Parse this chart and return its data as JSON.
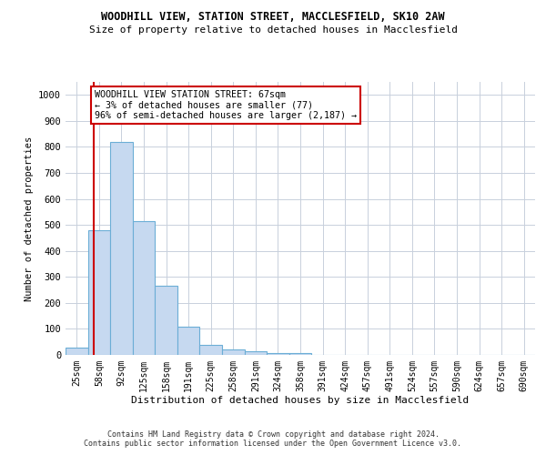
{
  "title_line1": "WOODHILL VIEW, STATION STREET, MACCLESFIELD, SK10 2AW",
  "title_line2": "Size of property relative to detached houses in Macclesfield",
  "xlabel": "Distribution of detached houses by size in Macclesfield",
  "ylabel": "Number of detached properties",
  "footer_line1": "Contains HM Land Registry data © Crown copyright and database right 2024.",
  "footer_line2": "Contains public sector information licensed under the Open Government Licence v3.0.",
  "bin_labels": [
    "25sqm",
    "58sqm",
    "92sqm",
    "125sqm",
    "158sqm",
    "191sqm",
    "225sqm",
    "258sqm",
    "291sqm",
    "324sqm",
    "358sqm",
    "391sqm",
    "424sqm",
    "457sqm",
    "491sqm",
    "524sqm",
    "557sqm",
    "590sqm",
    "624sqm",
    "657sqm",
    "690sqm"
  ],
  "bar_heights": [
    27,
    480,
    820,
    515,
    265,
    109,
    38,
    20,
    15,
    8,
    6,
    0,
    0,
    0,
    0,
    0,
    0,
    0,
    0,
    0,
    0
  ],
  "bar_color": "#c6d9f0",
  "bar_edge_color": "#6baed6",
  "ylim": [
    0,
    1050
  ],
  "yticks": [
    0,
    100,
    200,
    300,
    400,
    500,
    600,
    700,
    800,
    900,
    1000
  ],
  "vline_color": "#cc0000",
  "annotation_text": "WOODHILL VIEW STATION STREET: 67sqm\n← 3% of detached houses are smaller (77)\n96% of semi-detached houses are larger (2,187) →",
  "annotation_box_color": "#ffffff",
  "annotation_box_edge_color": "#cc0000",
  "background_color": "#ffffff",
  "grid_color": "#c8d0dc"
}
